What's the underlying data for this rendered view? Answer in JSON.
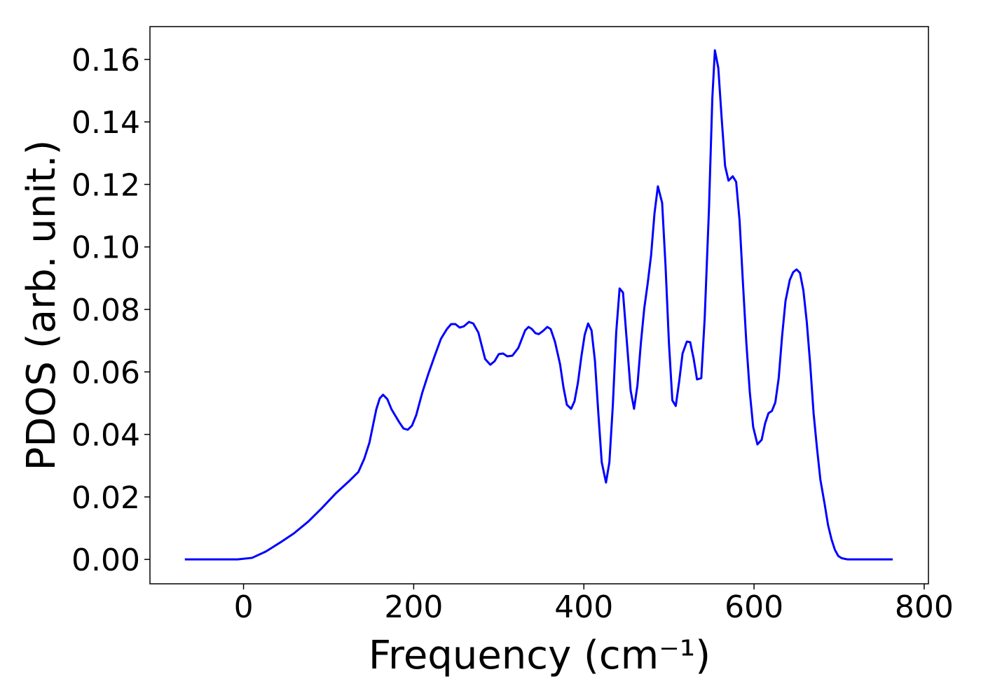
{
  "chart_data": {
    "type": "line",
    "xlabel": "Frequency (cm⁻¹)",
    "ylabel": "PDOS (arb. unit.)",
    "xlim": [
      -110,
      805
    ],
    "ylim": [
      -0.0078,
      0.1705
    ],
    "xticks": [
      0,
      200,
      400,
      600,
      800
    ],
    "yticks": [
      {
        "value": 0,
        "label": "0.00"
      },
      0.02,
      0.04,
      0.06,
      0.08,
      {
        "value": 0.1,
        "label": "0.10"
      },
      0.12,
      0.14,
      0.16
    ],
    "grid": false,
    "series": [
      {
        "color": "#0000ff",
        "x": [
          -69,
          -7,
          10,
          26,
          43,
          59,
          76,
          92,
          109,
          125,
          135,
          142,
          148,
          156,
          160,
          164,
          169,
          174,
          183,
          188,
          193,
          198,
          203,
          210,
          217,
          225,
          232,
          239,
          244,
          249,
          254,
          259,
          265,
          270,
          276,
          284,
          290,
          295,
          300,
          305,
          310,
          316,
          323,
          331,
          335,
          339,
          343,
          347,
          352,
          357,
          361,
          366,
          372,
          376,
          380,
          385,
          389,
          393,
          397,
          401,
          405,
          409,
          413,
          417,
          421,
          426,
          430,
          434,
          438,
          442,
          446,
          450,
          455,
          459,
          463,
          467,
          471,
          475,
          479,
          483,
          487,
          492,
          496,
          500,
          504,
          508,
          512,
          516,
          521,
          525,
          529,
          533,
          538,
          542,
          547,
          551,
          554,
          558,
          562,
          566,
          570,
          575,
          579,
          583,
          587,
          591,
          595,
          599,
          604,
          609,
          613,
          617,
          621,
          625,
          629,
          633,
          637,
          642,
          646,
          650,
          654,
          658,
          662,
          666,
          670,
          674,
          678,
          683,
          687,
          691,
          695,
          699,
          703,
          710,
          763
        ],
        "values": [
          0,
          0,
          0.0005,
          0.0025,
          0.0054,
          0.0083,
          0.0121,
          0.0164,
          0.0213,
          0.0253,
          0.028,
          0.0323,
          0.0374,
          0.048,
          0.0515,
          0.0527,
          0.0513,
          0.048,
          0.0439,
          0.0419,
          0.0415,
          0.0428,
          0.0462,
          0.0533,
          0.0592,
          0.0654,
          0.0706,
          0.0737,
          0.0753,
          0.0753,
          0.0742,
          0.0746,
          0.076,
          0.0755,
          0.0726,
          0.0641,
          0.0623,
          0.0634,
          0.0657,
          0.0659,
          0.065,
          0.0652,
          0.0677,
          0.0733,
          0.0744,
          0.0737,
          0.0724,
          0.0721,
          0.0731,
          0.0744,
          0.0737,
          0.0697,
          0.0625,
          0.0551,
          0.0495,
          0.0482,
          0.0506,
          0.0565,
          0.0648,
          0.0719,
          0.0755,
          0.0733,
          0.0636,
          0.0468,
          0.0311,
          0.0246,
          0.0311,
          0.0491,
          0.0726,
          0.0867,
          0.0854,
          0.0715,
          0.054,
          0.0482,
          0.0558,
          0.0692,
          0.0804,
          0.0883,
          0.0973,
          0.1107,
          0.1194,
          0.1141,
          0.0939,
          0.0692,
          0.0509,
          0.0491,
          0.0569,
          0.0659,
          0.0697,
          0.0695,
          0.0643,
          0.0576,
          0.058,
          0.0771,
          0.1118,
          0.1477,
          0.1629,
          0.1573,
          0.141,
          0.1259,
          0.1212,
          0.1226,
          0.1208,
          0.1085,
          0.0883,
          0.0692,
          0.0536,
          0.0424,
          0.0368,
          0.0383,
          0.0435,
          0.0468,
          0.0475,
          0.0502,
          0.058,
          0.0715,
          0.0827,
          0.0894,
          0.0919,
          0.0928,
          0.0917,
          0.0861,
          0.076,
          0.0625,
          0.0468,
          0.0356,
          0.0255,
          0.0177,
          0.011,
          0.0065,
          0.0031,
          0.0011,
          0.0004,
          0,
          0
        ]
      }
    ]
  }
}
